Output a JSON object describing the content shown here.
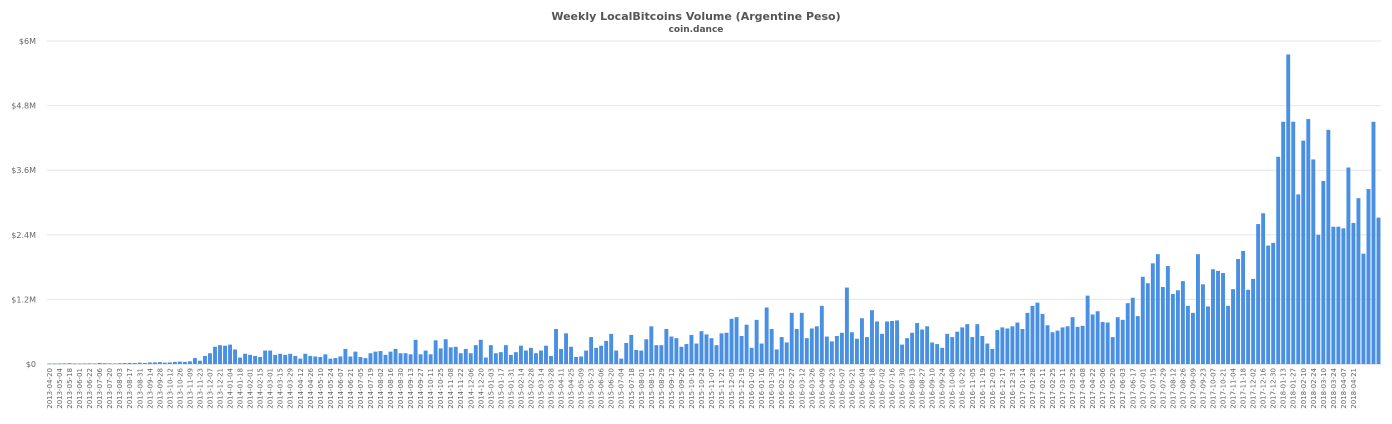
{
  "chart_data": {
    "type": "bar",
    "title": "Weekly LocalBitcoins Volume (Argentine Peso)",
    "subtitle": "coin.dance",
    "xlabel": "",
    "ylabel": "",
    "ylim": [
      0,
      6000000
    ],
    "y_ticks": [
      "$0",
      "$1.2M",
      "$2.4M",
      "$3.6M",
      "$4.8M",
      "$6M"
    ],
    "y_tick_values": [
      0,
      1200000,
      2400000,
      3600000,
      4800000,
      6000000
    ],
    "grid": true,
    "legend": "none",
    "bar_color": "#4a90e2",
    "x_tick_labels": [
      "2013-04-20",
      "2013-05-04",
      "2013-05-18",
      "2013-06-01",
      "2013-06-22",
      "2013-07-06",
      "2013-07-20",
      "2013-08-03",
      "2013-08-17",
      "2013-08-31",
      "2013-09-14",
      "2013-09-28",
      "2013-10-12",
      "2013-10-26",
      "2013-11-09",
      "2013-11-23",
      "2013-12-07",
      "2013-12-21",
      "2014-01-04",
      "2014-01-18",
      "2014-02-01",
      "2014-02-15",
      "2014-03-01",
      "2014-03-15",
      "2014-03-29",
      "2014-04-12",
      "2014-04-26",
      "2014-05-10",
      "2014-05-24",
      "2014-06-07",
      "2014-06-21",
      "2014-07-05",
      "2014-07-19",
      "2014-08-02",
      "2014-08-16",
      "2014-08-30",
      "2014-09-13",
      "2014-09-27",
      "2014-10-11",
      "2014-10-25",
      "2014-11-08",
      "2014-11-22",
      "2014-12-06",
      "2014-12-20",
      "2015-01-03",
      "2015-01-17",
      "2015-01-31",
      "2015-02-14",
      "2015-02-28",
      "2015-03-14",
      "2015-03-28",
      "2015-04-11",
      "2015-04-25",
      "2015-05-09",
      "2015-05-23",
      "2015-06-06",
      "2015-06-20",
      "2015-07-04",
      "2015-07-18",
      "2015-08-01",
      "2015-08-15",
      "2015-08-29",
      "2015-09-12",
      "2015-09-26",
      "2015-10-10",
      "2015-10-24",
      "2015-11-07",
      "2015-11-21",
      "2015-12-05",
      "2015-12-19",
      "2016-01-02",
      "2016-01-16",
      "2016-01-30",
      "2016-02-13",
      "2016-02-27",
      "2016-03-12",
      "2016-03-26",
      "2016-04-09",
      "2016-04-23",
      "2016-05-07",
      "2016-05-21",
      "2016-06-04",
      "2016-06-18",
      "2016-07-02",
      "2016-07-16",
      "2016-07-30",
      "2016-08-13",
      "2016-08-27",
      "2016-09-10",
      "2016-09-24",
      "2016-10-08",
      "2016-10-22",
      "2016-11-05",
      "2016-11-19",
      "2016-12-03",
      "2016-12-17",
      "2016-12-31",
      "2017-01-14",
      "2017-01-28",
      "2017-02-11",
      "2017-02-25",
      "2017-03-11",
      "2017-03-25",
      "2017-04-08",
      "2017-04-22",
      "2017-05-06",
      "2017-05-20",
      "2017-06-03",
      "2017-06-17",
      "2017-07-01",
      "2017-07-15",
      "2017-07-29",
      "2017-08-12",
      "2017-08-26",
      "2017-09-09",
      "2017-09-23",
      "2017-10-07",
      "2017-10-21",
      "2017-11-04",
      "2017-11-18",
      "2017-12-02",
      "2017-12-16",
      "2017-12-30",
      "2018-01-13",
      "2018-01-27",
      "2018-02-10",
      "2018-02-24",
      "2018-03-10",
      "2018-03-24",
      "2018-04-07",
      "2018-04-21"
    ],
    "values": [
      10000,
      8000,
      10000,
      12000,
      15000,
      10000,
      8000,
      10000,
      12000,
      10000,
      20000,
      15000,
      12000,
      10000,
      15000,
      18000,
      20000,
      18000,
      25000,
      20000,
      30000,
      30000,
      35000,
      25000,
      30000,
      40000,
      45000,
      40000,
      50000,
      110000,
      60000,
      150000,
      200000,
      320000,
      350000,
      340000,
      360000,
      270000,
      120000,
      190000,
      170000,
      150000,
      130000,
      250000,
      250000,
      170000,
      190000,
      170000,
      190000,
      150000,
      100000,
      190000,
      150000,
      140000,
      130000,
      180000,
      100000,
      110000,
      140000,
      280000,
      140000,
      230000,
      130000,
      110000,
      200000,
      230000,
      240000,
      170000,
      230000,
      280000,
      200000,
      200000,
      180000,
      450000,
      180000,
      250000,
      180000,
      440000,
      290000,
      460000,
      310000,
      320000,
      200000,
      280000,
      200000,
      350000,
      450000,
      120000,
      350000,
      200000,
      220000,
      350000,
      170000,
      220000,
      340000,
      250000,
      300000,
      200000,
      250000,
      340000,
      150000,
      650000,
      280000,
      570000,
      320000,
      130000,
      140000,
      250000,
      500000,
      300000,
      340000,
      430000,
      560000,
      250000,
      100000,
      390000,
      540000,
      260000,
      250000,
      460000,
      700000,
      350000,
      350000,
      650000,
      510000,
      480000,
      320000,
      370000,
      540000,
      380000,
      610000,
      550000,
      480000,
      350000,
      570000,
      580000,
      840000,
      870000,
      520000,
      730000,
      300000,
      820000,
      380000,
      1050000,
      650000,
      270000,
      500000,
      400000,
      950000,
      650000,
      950000,
      480000,
      660000,
      700000,
      1080000,
      510000,
      420000,
      520000,
      580000,
      1420000,
      590000,
      470000,
      850000,
      500000,
      1000000,
      790000,
      560000,
      790000,
      800000,
      810000,
      360000,
      480000,
      580000,
      760000,
      640000,
      700000,
      400000,
      370000,
      300000,
      560000,
      500000,
      600000,
      680000,
      740000,
      500000,
      740000,
      520000,
      380000,
      280000,
      630000,
      680000,
      660000,
      700000,
      770000,
      650000,
      950000,
      1080000,
      1140000,
      930000,
      720000,
      590000,
      620000,
      680000,
      700000,
      870000,
      690000,
      710000,
      1270000,
      920000,
      980000,
      780000,
      770000,
      500000,
      870000,
      820000,
      1130000,
      1230000,
      890000,
      1620000,
      1500000,
      1870000,
      2040000,
      1430000,
      1820000,
      1300000,
      1370000,
      1540000,
      1080000,
      950000,
      2040000,
      1480000,
      1070000,
      1760000,
      1730000,
      1690000,
      1080000,
      1390000,
      1950000,
      2100000,
      1380000,
      1580000,
      2600000,
      2800000,
      2200000,
      2250000,
      3850000,
      4500000,
      5750000,
      4500000,
      3150000,
      4150000,
      4550000,
      3800000,
      2400000,
      3400000,
      4350000,
      2550000,
      2550000,
      2520000,
      3650000,
      2620000,
      3080000,
      2050000,
      3250000,
      4500000,
      2720000
    ]
  }
}
